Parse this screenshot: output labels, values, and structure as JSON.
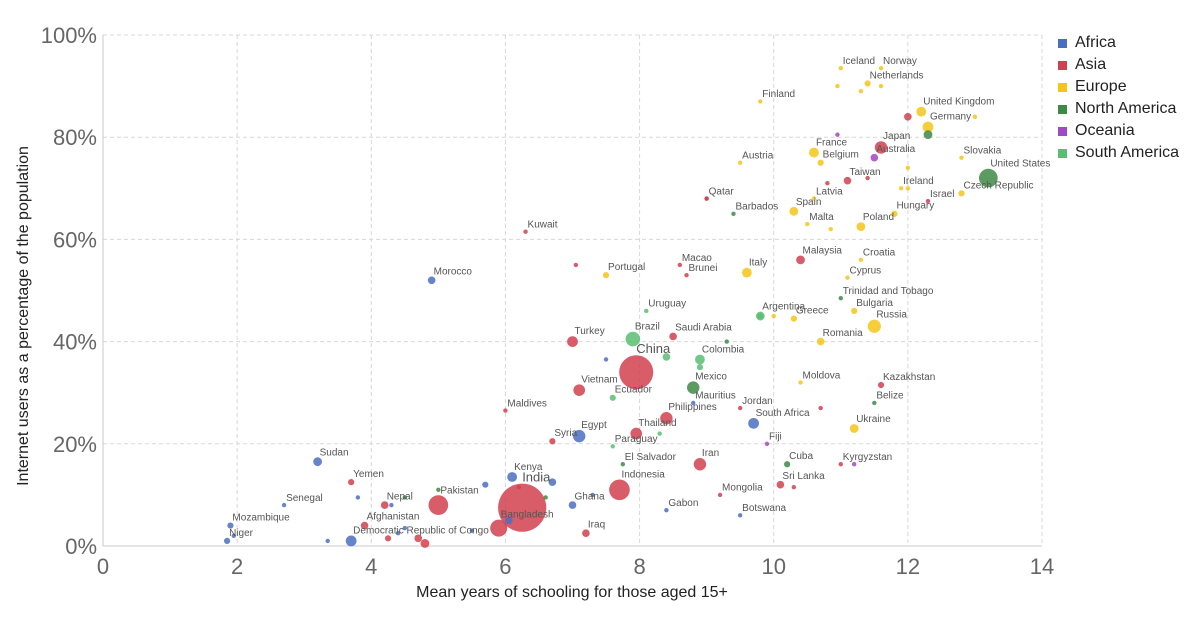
{
  "chart_data": {
    "type": "scatter",
    "xlabel": "Mean years of schooling for those aged 15+",
    "ylabel": "Internet users as a percentage of the population",
    "xlim": [
      0,
      14
    ],
    "ylim": [
      0,
      100
    ],
    "x_ticks": [
      "0",
      "2",
      "4",
      "6",
      "8",
      "10",
      "12",
      "14"
    ],
    "y_ticks": [
      "0%",
      "20%",
      "40%",
      "60%",
      "80%",
      "100%"
    ],
    "grid": true,
    "legend_position": "top-right",
    "series": [
      {
        "name": "Africa",
        "color": "#4a6fc1"
      },
      {
        "name": "Asia",
        "color": "#d2404f"
      },
      {
        "name": "Europe",
        "color": "#f5c518"
      },
      {
        "name": "North America",
        "color": "#3e8a45"
      },
      {
        "name": "Oceania",
        "color": "#a347c2"
      },
      {
        "name": "South America",
        "color": "#5cbe72"
      }
    ],
    "points": [
      {
        "label": "Iceland",
        "x": 11.0,
        "y": 93.5,
        "region": "Europe",
        "size": 1
      },
      {
        "label": "Norway",
        "x": 11.6,
        "y": 93.5,
        "region": "Europe",
        "size": 1
      },
      {
        "label": "Netherlands",
        "x": 11.4,
        "y": 90.5,
        "region": "Europe",
        "size": 2
      },
      {
        "label": "Finland",
        "x": 9.8,
        "y": 87,
        "region": "Europe",
        "size": 1
      },
      {
        "label": "United Kingdom",
        "x": 12.2,
        "y": 85,
        "region": "Europe",
        "size": 5
      },
      {
        "label": "Germany",
        "x": 12.3,
        "y": 82,
        "region": "Europe",
        "size": 6
      },
      {
        "label": "Japan",
        "x": 11.6,
        "y": 78,
        "region": "Asia",
        "size": 8
      },
      {
        "label": "Australia",
        "x": 11.5,
        "y": 76,
        "region": "Oceania",
        "size": 3
      },
      {
        "label": "France",
        "x": 10.6,
        "y": 77,
        "region": "Europe",
        "size": 5
      },
      {
        "label": "Belgium",
        "x": 10.7,
        "y": 75,
        "region": "Europe",
        "size": 2
      },
      {
        "label": "Austria",
        "x": 9.5,
        "y": 75,
        "region": "Europe",
        "size": 1
      },
      {
        "label": "Slovakia",
        "x": 12.8,
        "y": 76,
        "region": "Europe",
        "size": 1
      },
      {
        "label": "United States",
        "x": 13.2,
        "y": 72,
        "region": "North America",
        "size": 18
      },
      {
        "label": "Taiwan",
        "x": 11.1,
        "y": 71.5,
        "region": "Asia",
        "size": 3
      },
      {
        "label": "Ireland",
        "x": 11.9,
        "y": 70,
        "region": "Europe",
        "size": 1
      },
      {
        "label": "Czech Republic",
        "x": 12.8,
        "y": 69,
        "region": "Europe",
        "size": 2
      },
      {
        "label": "Israel",
        "x": 12.3,
        "y": 67.5,
        "region": "Asia",
        "size": 1
      },
      {
        "label": "Qatar",
        "x": 9.0,
        "y": 68,
        "region": "Asia",
        "size": 1
      },
      {
        "label": "Latvia",
        "x": 10.6,
        "y": 68,
        "region": "Europe",
        "size": 1
      },
      {
        "label": "Barbados",
        "x": 9.4,
        "y": 65,
        "region": "North America",
        "size": 1
      },
      {
        "label": "Spain",
        "x": 10.3,
        "y": 65.5,
        "region": "Europe",
        "size": 4
      },
      {
        "label": "Hungary",
        "x": 11.8,
        "y": 65,
        "region": "Europe",
        "size": 2
      },
      {
        "label": "Malta",
        "x": 10.5,
        "y": 63,
        "region": "Europe",
        "size": 1
      },
      {
        "label": "Poland",
        "x": 11.3,
        "y": 62.5,
        "region": "Europe",
        "size": 4
      },
      {
        "label": "Kuwait",
        "x": 6.3,
        "y": 61.5,
        "region": "Asia",
        "size": 1
      },
      {
        "label": "Malaysia",
        "x": 10.4,
        "y": 56,
        "region": "Asia",
        "size": 4
      },
      {
        "label": "Croatia",
        "x": 11.3,
        "y": 56,
        "region": "Europe",
        "size": 1
      },
      {
        "label": "Macao",
        "x": 8.6,
        "y": 55,
        "region": "Asia",
        "size": 1
      },
      {
        "label": "Portugal",
        "x": 7.5,
        "y": 53,
        "region": "Europe",
        "size": 2
      },
      {
        "label": "Brunei",
        "x": 8.7,
        "y": 53,
        "region": "Asia",
        "size": 1
      },
      {
        "label": "Italy",
        "x": 9.6,
        "y": 53.5,
        "region": "Europe",
        "size": 5
      },
      {
        "label": "Cyprus",
        "x": 11.1,
        "y": 52.5,
        "region": "Europe",
        "size": 1
      },
      {
        "label": "Morocco",
        "x": 4.9,
        "y": 52,
        "region": "Africa",
        "size": 3
      },
      {
        "label": "Trinidad and Tobago",
        "x": 11.0,
        "y": 48.5,
        "region": "North America",
        "size": 1
      },
      {
        "label": "Uruguay",
        "x": 8.1,
        "y": 46,
        "region": "South America",
        "size": 1
      },
      {
        "label": "Argentina",
        "x": 9.8,
        "y": 45,
        "region": "South America",
        "size": 4
      },
      {
        "label": "Bulgaria",
        "x": 11.2,
        "y": 46,
        "region": "Europe",
        "size": 2
      },
      {
        "label": "Greece",
        "x": 10.3,
        "y": 44.5,
        "region": "Europe",
        "size": 2
      },
      {
        "label": "Russia",
        "x": 11.5,
        "y": 43,
        "region": "Europe",
        "size": 9
      },
      {
        "label": "Saudi Arabia",
        "x": 8.5,
        "y": 41,
        "region": "Asia",
        "size": 3
      },
      {
        "label": "Turkey",
        "x": 7.0,
        "y": 40,
        "region": "Asia",
        "size": 6
      },
      {
        "label": "Brazil",
        "x": 7.9,
        "y": 40.5,
        "region": "South America",
        "size": 11
      },
      {
        "label": "Romania",
        "x": 10.7,
        "y": 40,
        "region": "Europe",
        "size": 3
      },
      {
        "label": "China",
        "x": 7.95,
        "y": 34,
        "region": "Asia",
        "size": 60
      },
      {
        "label": "Colombia",
        "x": 8.9,
        "y": 36.5,
        "region": "South America",
        "size": 5
      },
      {
        "label": "Vietnam",
        "x": 7.1,
        "y": 30.5,
        "region": "Asia",
        "size": 7
      },
      {
        "label": "Mexico",
        "x": 8.8,
        "y": 31,
        "region": "North America",
        "size": 8
      },
      {
        "label": "Moldova",
        "x": 10.4,
        "y": 32,
        "region": "Europe",
        "size": 1
      },
      {
        "label": "Kazakhstan",
        "x": 11.6,
        "y": 31.5,
        "region": "Asia",
        "size": 2
      },
      {
        "label": "Ecuador",
        "x": 7.6,
        "y": 29,
        "region": "South America",
        "size": 2
      },
      {
        "label": "Mauritius",
        "x": 8.8,
        "y": 28,
        "region": "Africa",
        "size": 1
      },
      {
        "label": "Belize",
        "x": 11.5,
        "y": 28,
        "region": "North America",
        "size": 1
      },
      {
        "label": "Maldives",
        "x": 6.0,
        "y": 26.5,
        "region": "Asia",
        "size": 1
      },
      {
        "label": "Jordan",
        "x": 9.5,
        "y": 27,
        "region": "Asia",
        "size": 1
      },
      {
        "label": "Philippines",
        "x": 8.4,
        "y": 25,
        "region": "Asia",
        "size": 8
      },
      {
        "label": "South Africa",
        "x": 9.7,
        "y": 24,
        "region": "Africa",
        "size": 6
      },
      {
        "label": "Thailand",
        "x": 7.95,
        "y": 22,
        "region": "Asia",
        "size": 7
      },
      {
        "label": "Ukraine",
        "x": 11.2,
        "y": 23,
        "region": "Europe",
        "size": 4
      },
      {
        "label": "Egypt",
        "x": 7.1,
        "y": 21.5,
        "region": "Africa",
        "size": 8
      },
      {
        "label": "Syria",
        "x": 6.7,
        "y": 20.5,
        "region": "Asia",
        "size": 2
      },
      {
        "label": "Paraguay",
        "x": 7.6,
        "y": 19.5,
        "region": "South America",
        "size": 1
      },
      {
        "label": "Fiji",
        "x": 9.9,
        "y": 20,
        "region": "Oceania",
        "size": 1
      },
      {
        "label": "Sudan",
        "x": 3.2,
        "y": 16.5,
        "region": "Africa",
        "size": 4
      },
      {
        "label": "Iran",
        "x": 8.9,
        "y": 16,
        "region": "Asia",
        "size": 8
      },
      {
        "label": "Cuba",
        "x": 10.2,
        "y": 16,
        "region": "North America",
        "size": 2
      },
      {
        "label": "Kyrgyzstan",
        "x": 11.0,
        "y": 16,
        "region": "Asia",
        "size": 1
      },
      {
        "label": "El Salvador",
        "x": 7.75,
        "y": 16,
        "region": "North America",
        "size": 1
      },
      {
        "label": "Kenya",
        "x": 6.1,
        "y": 13.5,
        "region": "Africa",
        "size": 5
      },
      {
        "label": "Yemen",
        "x": 3.7,
        "y": 12.5,
        "region": "Asia",
        "size": 2
      },
      {
        "label": "Indonesia",
        "x": 7.7,
        "y": 11,
        "region": "Asia",
        "size": 22
      },
      {
        "label": "India",
        "x": 6.25,
        "y": 7.5,
        "region": "Asia",
        "size": 120
      },
      {
        "label": "Sri Lanka",
        "x": 10.1,
        "y": 12,
        "region": "Asia",
        "size": 3
      },
      {
        "label": "Mongolia",
        "x": 9.2,
        "y": 10,
        "region": "Asia",
        "size": 1
      },
      {
        "label": "Pakistan",
        "x": 5.0,
        "y": 8,
        "region": "Asia",
        "size": 20
      },
      {
        "label": "Nepal",
        "x": 4.2,
        "y": 8,
        "region": "Asia",
        "size": 3
      },
      {
        "label": "Ghana",
        "x": 7.0,
        "y": 8,
        "region": "Africa",
        "size": 3
      },
      {
        "label": "Senegal",
        "x": 2.7,
        "y": 8,
        "region": "Africa",
        "size": 1
      },
      {
        "label": "Gabon",
        "x": 8.4,
        "y": 7,
        "region": "Africa",
        "size": 1
      },
      {
        "label": "Botswana",
        "x": 9.5,
        "y": 6,
        "region": "Africa",
        "size": 1
      },
      {
        "label": "Bangladesh",
        "x": 5.9,
        "y": 3.5,
        "region": "Asia",
        "size": 15
      },
      {
        "label": "Afghanistan",
        "x": 3.9,
        "y": 4,
        "region": "Asia",
        "size": 3
      },
      {
        "label": "Mozambique",
        "x": 1.9,
        "y": 4,
        "region": "Africa",
        "size": 2
      },
      {
        "label": "Iraq",
        "x": 7.2,
        "y": 2.5,
        "region": "Asia",
        "size": 3
      },
      {
        "label": "Democratic Republic of Congo",
        "x": 3.7,
        "y": 1,
        "region": "Africa",
        "size": 6
      },
      {
        "label": "Niger",
        "x": 1.85,
        "y": 1,
        "region": "Africa",
        "size": 2
      },
      {
        "label": "",
        "x": 1.95,
        "y": 2,
        "region": "Africa",
        "size": 1
      },
      {
        "label": "",
        "x": 3.35,
        "y": 1,
        "region": "Africa",
        "size": 1
      },
      {
        "label": "",
        "x": 3.8,
        "y": 9.5,
        "region": "Africa",
        "size": 1
      },
      {
        "label": "",
        "x": 4.3,
        "y": 8,
        "region": "Africa",
        "size": 1
      },
      {
        "label": "",
        "x": 4.5,
        "y": 9.5,
        "region": "North America",
        "size": 1
      },
      {
        "label": "",
        "x": 4.25,
        "y": 1.5,
        "region": "Asia",
        "size": 2
      },
      {
        "label": "",
        "x": 4.4,
        "y": 2.5,
        "region": "Africa",
        "size": 1
      },
      {
        "label": "",
        "x": 4.5,
        "y": 3.5,
        "region": "Africa",
        "size": 1
      },
      {
        "label": "",
        "x": 4.7,
        "y": 1.5,
        "region": "Asia",
        "size": 3
      },
      {
        "label": "",
        "x": 4.8,
        "y": 0.5,
        "region": "Asia",
        "size": 4
      },
      {
        "label": "",
        "x": 5.0,
        "y": 11,
        "region": "North America",
        "size": 1
      },
      {
        "label": "",
        "x": 5.5,
        "y": 3,
        "region": "Africa",
        "size": 1
      },
      {
        "label": "",
        "x": 5.7,
        "y": 12,
        "region": "Africa",
        "size": 2
      },
      {
        "label": "",
        "x": 6.05,
        "y": 5,
        "region": "Africa",
        "size": 3
      },
      {
        "label": "",
        "x": 6.2,
        "y": 11.5,
        "region": "Asia",
        "size": 1
      },
      {
        "label": "",
        "x": 6.6,
        "y": 9.5,
        "region": "North America",
        "size": 1
      },
      {
        "label": "",
        "x": 6.7,
        "y": 12.5,
        "region": "Africa",
        "size": 3
      },
      {
        "label": "",
        "x": 7.3,
        "y": 10,
        "region": "Africa",
        "size": 1
      },
      {
        "label": "",
        "x": 7.5,
        "y": 36.5,
        "region": "Africa",
        "size": 1
      },
      {
        "label": "",
        "x": 7.05,
        "y": 55,
        "region": "Asia",
        "size": 1
      },
      {
        "label": "",
        "x": 8.3,
        "y": 22,
        "region": "South America",
        "size": 1
      },
      {
        "label": "",
        "x": 8.4,
        "y": 37,
        "region": "South America",
        "size": 3
      },
      {
        "label": "",
        "x": 8.9,
        "y": 35,
        "region": "South America",
        "size": 2
      },
      {
        "label": "",
        "x": 9.3,
        "y": 40,
        "region": "North America",
        "size": 1
      },
      {
        "label": "",
        "x": 9.0,
        "y": 68,
        "region": "Asia",
        "size": 1
      },
      {
        "label": "",
        "x": 9.8,
        "y": 45,
        "region": "South America",
        "size": 2
      },
      {
        "label": "",
        "x": 10.0,
        "y": 45,
        "region": "Europe",
        "size": 1
      },
      {
        "label": "",
        "x": 10.7,
        "y": 27,
        "region": "Asia",
        "size": 1
      },
      {
        "label": "",
        "x": 10.3,
        "y": 11.5,
        "region": "Asia",
        "size": 1
      },
      {
        "label": "",
        "x": 10.8,
        "y": 71,
        "region": "Asia",
        "size": 1
      },
      {
        "label": "",
        "x": 10.85,
        "y": 62,
        "region": "Europe",
        "size": 1
      },
      {
        "label": "",
        "x": 10.95,
        "y": 80.5,
        "region": "Oceania",
        "size": 1
      },
      {
        "label": "",
        "x": 10.95,
        "y": 90,
        "region": "Europe",
        "size": 1
      },
      {
        "label": "",
        "x": 11.3,
        "y": 89,
        "region": "Europe",
        "size": 1
      },
      {
        "label": "",
        "x": 11.4,
        "y": 72,
        "region": "Asia",
        "size": 1
      },
      {
        "label": "",
        "x": 11.6,
        "y": 90,
        "region": "Europe",
        "size": 1
      },
      {
        "label": "",
        "x": 12.0,
        "y": 84,
        "region": "Asia",
        "size": 3
      },
      {
        "label": "",
        "x": 12.0,
        "y": 74,
        "region": "Europe",
        "size": 1
      },
      {
        "label": "",
        "x": 12.0,
        "y": 70,
        "region": "Europe",
        "size": 1
      },
      {
        "label": "",
        "x": 12.3,
        "y": 80.5,
        "region": "North America",
        "size": 4
      },
      {
        "label": "",
        "x": 13.0,
        "y": 84,
        "region": "Europe",
        "size": 1
      },
      {
        "label": "",
        "x": 11.2,
        "y": 16,
        "region": "Oceania",
        "size": 1
      }
    ]
  }
}
